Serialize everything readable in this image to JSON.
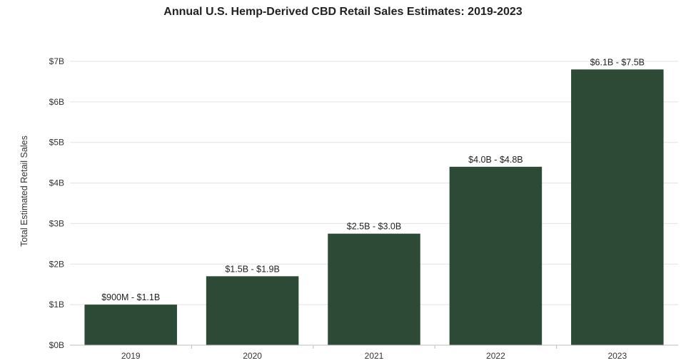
{
  "chart_data": {
    "type": "bar",
    "title": "Annual U.S. Hemp-Derived CBD Retail Sales Estimates: 2019-2023",
    "xlabel": "",
    "ylabel": "Total Estimated Retail Sales",
    "categories": [
      "2019",
      "2020",
      "2021",
      "2022",
      "2023"
    ],
    "values": [
      1.0,
      1.7,
      2.75,
      4.4,
      6.8
    ],
    "value_units": "billions USD",
    "data_labels": [
      "$900M - $1.1B",
      "$1.5B - $1.9B",
      "$2.5B - $3.0B",
      "$4.0B - $4.8B",
      "$6.1B - $7.5B"
    ],
    "ylim": [
      0,
      7
    ],
    "yticks": [
      0,
      1,
      2,
      3,
      4,
      5,
      6,
      7
    ],
    "ytick_labels": [
      "$0B",
      "$1B",
      "$2B",
      "$3B",
      "$4B",
      "$5B",
      "$6B",
      "$7B"
    ],
    "grid": true,
    "legend": "none",
    "bar_color": "#2d4a37",
    "grid_color": "#e3e3e3",
    "axis_color": "#bdbdbd"
  }
}
